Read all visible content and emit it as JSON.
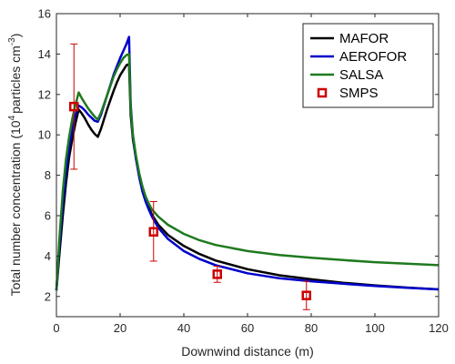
{
  "chart_data": {
    "type": "line",
    "xlabel": "Downwind distance (m)",
    "ylabel": {
      "prefix": "Total number concentration (10",
      "exp1": "4",
      "middle": "particles cm",
      "exp2": "-3",
      "suffix": ")"
    },
    "xlim": [
      0,
      120
    ],
    "ylim": [
      1,
      16
    ],
    "xticks": [
      0,
      20,
      40,
      60,
      80,
      100,
      120
    ],
    "yticks": [
      2,
      4,
      6,
      8,
      10,
      12,
      14,
      16
    ],
    "grid": false,
    "legend_position": "top-right",
    "series": [
      {
        "name": "MAFOR",
        "color": "#000000",
        "points": [
          [
            0,
            2.3
          ],
          [
            1,
            4.2
          ],
          [
            2,
            6.0
          ],
          [
            3,
            7.6
          ],
          [
            4,
            8.9
          ],
          [
            5,
            9.8
          ],
          [
            6,
            10.6
          ],
          [
            7,
            11.25
          ],
          [
            8,
            11.05
          ],
          [
            9,
            10.8
          ],
          [
            10,
            10.5
          ],
          [
            11,
            10.25
          ],
          [
            12,
            10.05
          ],
          [
            13,
            9.9
          ],
          [
            14,
            10.3
          ],
          [
            15,
            10.8
          ],
          [
            16,
            11.3
          ],
          [
            17,
            11.75
          ],
          [
            18,
            12.2
          ],
          [
            19,
            12.6
          ],
          [
            20,
            12.95
          ],
          [
            21,
            13.2
          ],
          [
            22,
            13.45
          ],
          [
            22.8,
            13.5
          ],
          [
            23.3,
            11.0
          ],
          [
            24,
            9.8
          ],
          [
            25,
            8.8
          ],
          [
            26,
            8.0
          ],
          [
            27,
            7.3
          ],
          [
            28,
            6.8
          ],
          [
            29,
            6.4
          ],
          [
            30,
            6.05
          ],
          [
            32,
            5.55
          ],
          [
            35,
            5.05
          ],
          [
            40,
            4.5
          ],
          [
            45,
            4.1
          ],
          [
            50,
            3.78
          ],
          [
            60,
            3.35
          ],
          [
            70,
            3.05
          ],
          [
            80,
            2.85
          ],
          [
            90,
            2.68
          ],
          [
            100,
            2.55
          ],
          [
            110,
            2.44
          ],
          [
            120,
            2.35
          ]
        ]
      },
      {
        "name": "AEROFOR",
        "color": "#0000cc",
        "points": [
          [
            0,
            2.3
          ],
          [
            1,
            4.6
          ],
          [
            2,
            6.6
          ],
          [
            3,
            8.2
          ],
          [
            4,
            9.4
          ],
          [
            5,
            10.3
          ],
          [
            6,
            11.0
          ],
          [
            7,
            11.45
          ],
          [
            8,
            11.35
          ],
          [
            9,
            11.2
          ],
          [
            10,
            11.0
          ],
          [
            11,
            10.85
          ],
          [
            12,
            10.7
          ],
          [
            13,
            10.65
          ],
          [
            14,
            11.0
          ],
          [
            15,
            11.5
          ],
          [
            16,
            12.0
          ],
          [
            17,
            12.5
          ],
          [
            18,
            13.0
          ],
          [
            19,
            13.4
          ],
          [
            20,
            13.8
          ],
          [
            21,
            14.15
          ],
          [
            22,
            14.5
          ],
          [
            22.8,
            14.85
          ],
          [
            23.3,
            11.5
          ],
          [
            24,
            10.0
          ],
          [
            25,
            8.8
          ],
          [
            26,
            7.9
          ],
          [
            27,
            7.2
          ],
          [
            28,
            6.7
          ],
          [
            29,
            6.3
          ],
          [
            30,
            5.95
          ],
          [
            32,
            5.4
          ],
          [
            35,
            4.85
          ],
          [
            40,
            4.25
          ],
          [
            45,
            3.85
          ],
          [
            50,
            3.55
          ],
          [
            60,
            3.15
          ],
          [
            70,
            2.9
          ],
          [
            80,
            2.75
          ],
          [
            90,
            2.63
          ],
          [
            100,
            2.52
          ],
          [
            110,
            2.43
          ],
          [
            120,
            2.35
          ]
        ]
      },
      {
        "name": "SALSA",
        "color": "#1e7a1e",
        "points": [
          [
            0,
            2.3
          ],
          [
            1,
            5.0
          ],
          [
            2,
            7.2
          ],
          [
            3,
            8.8
          ],
          [
            4,
            9.9
          ],
          [
            5,
            10.8
          ],
          [
            6,
            11.5
          ],
          [
            7,
            12.1
          ],
          [
            8,
            11.8
          ],
          [
            9,
            11.55
          ],
          [
            10,
            11.3
          ],
          [
            11,
            11.1
          ],
          [
            12,
            10.9
          ],
          [
            13,
            10.75
          ],
          [
            14,
            11.1
          ],
          [
            15,
            11.55
          ],
          [
            16,
            12.0
          ],
          [
            17,
            12.45
          ],
          [
            18,
            12.9
          ],
          [
            19,
            13.25
          ],
          [
            20,
            13.55
          ],
          [
            21,
            13.8
          ],
          [
            22,
            13.95
          ],
          [
            22.8,
            14.0
          ],
          [
            23.3,
            11.3
          ],
          [
            24,
            10.0
          ],
          [
            25,
            8.95
          ],
          [
            26,
            8.1
          ],
          [
            27,
            7.45
          ],
          [
            28,
            6.95
          ],
          [
            29,
            6.6
          ],
          [
            30,
            6.3
          ],
          [
            32,
            5.95
          ],
          [
            35,
            5.55
          ],
          [
            40,
            5.1
          ],
          [
            45,
            4.78
          ],
          [
            50,
            4.55
          ],
          [
            60,
            4.25
          ],
          [
            70,
            4.05
          ],
          [
            80,
            3.92
          ],
          [
            90,
            3.8
          ],
          [
            100,
            3.7
          ],
          [
            110,
            3.62
          ],
          [
            120,
            3.55
          ]
        ]
      }
    ],
    "measurements": {
      "name": "SMPS",
      "color": "#cc0000",
      "points": [
        {
          "x": 5.5,
          "y": 11.4,
          "ylow": 8.3,
          "yhigh": 14.5
        },
        {
          "x": 30.5,
          "y": 5.2,
          "ylow": 3.75,
          "yhigh": 6.7
        },
        {
          "x": 50.5,
          "y": 3.1,
          "ylow": 2.7,
          "yhigh": 3.5
        },
        {
          "x": 78.5,
          "y": 2.05,
          "ylow": 1.35,
          "yhigh": 2.75
        }
      ]
    }
  }
}
